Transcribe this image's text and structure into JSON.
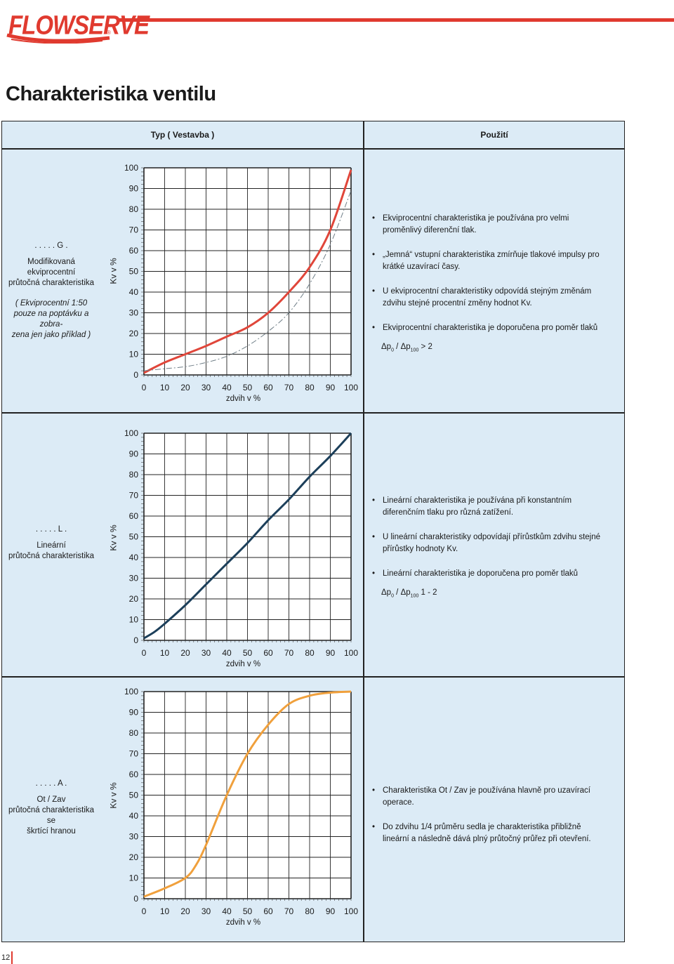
{
  "brand": {
    "name": "FLOWSERVE",
    "accent": "#e03a2f"
  },
  "title": "Charakteristika ventilu",
  "table": {
    "col_type": "Typ ( Vestavba )",
    "col_use": "Použití"
  },
  "rows": [
    {
      "code": ". . . . . G .",
      "name_line1": "Modifikovaná ekviprocentní",
      "name_line2": "průtočná charakteristika",
      "note_line1": "( Ekviprocentní 1:50",
      "note_line2": "pouze na poptávku a zobra-",
      "note_line3": "zena jen jako příklad )",
      "ylabel": "Kv v %",
      "xlabel": "zdvih v %",
      "desc": [
        "Ekviprocentní charakteristika je používána pro velmi proměnlivý diferenční tlak.",
        "„Jemná“ vstupní charakteristika zmírňuje tlakové impulsy pro krátké uzavírací časy.",
        "U ekviprocentní charakteristiky odpovídá stejným změnám zdvihu stejné procentní změny hodnot Kv.",
        "Ekviprocentní charakteristika je doporučena pro poměr tlaků"
      ],
      "ratio": {
        "dp": "Δp",
        "sub0": "0",
        "sep": " / ",
        "sub100": "100",
        "tail": " > 2"
      }
    },
    {
      "code": ". . . . . L .",
      "name_line1": "Lineární",
      "name_line2": "průtočná charakteristika",
      "ylabel": "Kv v %",
      "xlabel": "zdvih v %",
      "desc": [
        "Lineární charakteristika je používána při konstantním diferenčním tlaku pro různá zatížení.",
        "U lineární charakteristiky odpovídají přírůstkům zdvihu stejné přírůstky hodnoty Kv.",
        "Lineární charakteristika je doporučena pro poměr tlaků"
      ],
      "ratio": {
        "dp": "Δp",
        "sub0": "0",
        "sep": " / ",
        "sub100": "100",
        "tail": " 1 - 2"
      }
    },
    {
      "code": ". . . . . A .",
      "name_line1": "Ot / Zav",
      "name_line2": "průtočná charakteristika",
      "name_line3": "se",
      "name_line4": "škrtící hranou",
      "ylabel": "Kv v %",
      "xlabel": "zdvih v %",
      "desc": [
        "Charakteristika Ot / Zav je používána hlavně pro uzavírací operace.",
        "Do zdvihu 1/4 průměru sedla je charakteristika přibližně lineární a následně dává plný průtočný průřez při otevření."
      ]
    }
  ],
  "chart_data": [
    {
      "type": "line",
      "xlabel": "zdvih v %",
      "ylabel": "Kv v %",
      "xlim": [
        0,
        100
      ],
      "ylim": [
        0,
        100
      ],
      "ticks": [
        "0",
        "10",
        "20",
        "30",
        "40",
        "50",
        "60",
        "70",
        "80",
        "90",
        "100"
      ],
      "series": [
        {
          "color": "#e0463a",
          "style": "solid",
          "x": [
            0,
            10,
            20,
            30,
            40,
            50,
            60,
            70,
            80,
            90,
            100
          ],
          "y": [
            1,
            6,
            10,
            14,
            18.5,
            23,
            30,
            40,
            52,
            70,
            99
          ]
        },
        {
          "color": "#6e7d86",
          "style": "dashdot",
          "x": [
            0,
            10,
            20,
            30,
            40,
            50,
            60,
            70,
            80,
            90,
            100
          ],
          "y": [
            2,
            3,
            4,
            6,
            9,
            14,
            21,
            30,
            44,
            63,
            89
          ]
        }
      ]
    },
    {
      "type": "line",
      "xlabel": "zdvih v %",
      "ylabel": "Kv v %",
      "xlim": [
        0,
        100
      ],
      "ylim": [
        0,
        100
      ],
      "ticks": [
        "0",
        "10",
        "20",
        "30",
        "40",
        "50",
        "60",
        "70",
        "80",
        "90",
        "100"
      ],
      "series": [
        {
          "color": "#1c3f5a",
          "style": "solid",
          "x": [
            0,
            5,
            10,
            20,
            30,
            40,
            50,
            60,
            70,
            80,
            90,
            100
          ],
          "y": [
            1,
            4,
            8,
            17,
            27,
            37,
            47,
            58,
            68,
            79,
            89,
            100
          ]
        }
      ]
    },
    {
      "type": "line",
      "xlabel": "zdvih v %",
      "ylabel": "Kv v %",
      "xlim": [
        0,
        100
      ],
      "ylim": [
        0,
        100
      ],
      "ticks": [
        "0",
        "10",
        "20",
        "30",
        "40",
        "50",
        "60",
        "70",
        "80",
        "90",
        "100"
      ],
      "series": [
        {
          "color": "#f0a03c",
          "style": "solid",
          "x": [
            0,
            10,
            20,
            25,
            30,
            40,
            50,
            60,
            70,
            80,
            90,
            100
          ],
          "y": [
            1,
            5,
            10,
            16,
            26,
            50,
            70,
            84,
            94,
            98,
            99.5,
            100
          ]
        }
      ]
    }
  ]
}
